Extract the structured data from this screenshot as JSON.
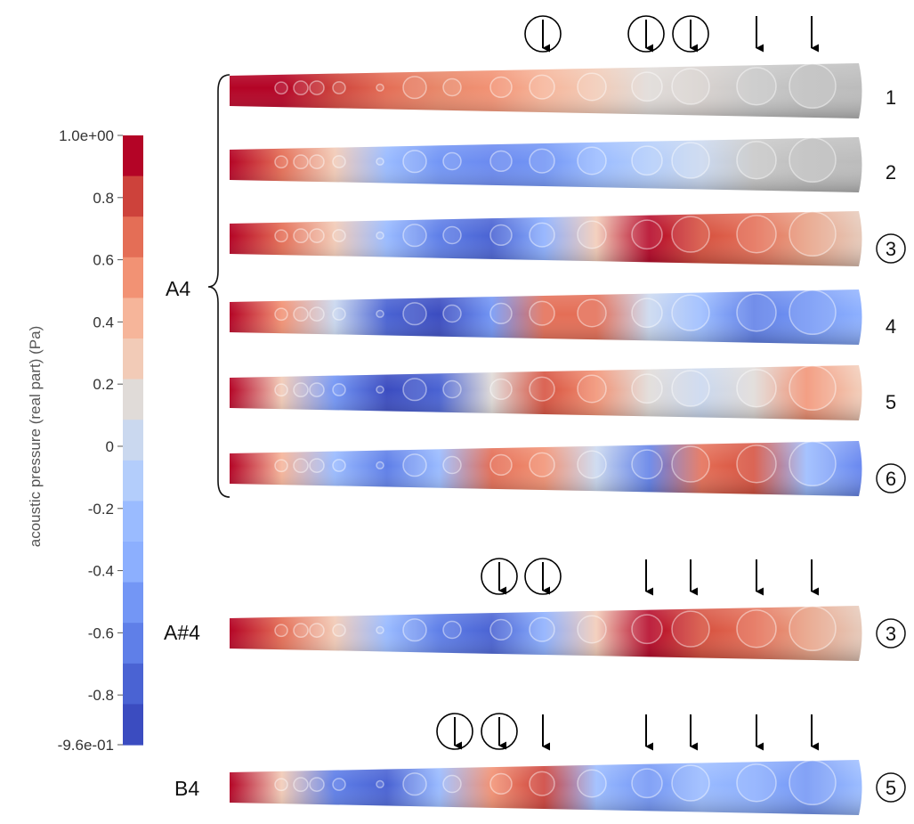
{
  "colorbar": {
    "title": "acoustic pressure (real part) (Pa)",
    "bands": [
      "#b40426",
      "#cd423b",
      "#e46e56",
      "#f29274",
      "#f6b59a",
      "#f2cbb7",
      "#e0dbd8",
      "#cad8ef",
      "#b3cdfb",
      "#9abbff",
      "#8caffe",
      "#7396f5",
      "#5f7fe8",
      "#4a63d3",
      "#3b4cc0"
    ],
    "ticks": [
      {
        "label": "1.0e+00",
        "value": 1.0
      },
      {
        "label": "0.8",
        "value": 0.8
      },
      {
        "label": "0.6",
        "value": 0.6
      },
      {
        "label": "0.4",
        "value": 0.4
      },
      {
        "label": "0.2",
        "value": 0.2
      },
      {
        "label": "0",
        "value": 0
      },
      {
        "label": "-0.2",
        "value": -0.2
      },
      {
        "label": "-0.4",
        "value": -0.4
      },
      {
        "label": "-0.6",
        "value": -0.6
      },
      {
        "label": "-0.8",
        "value": -0.8
      },
      {
        "label": "-9.6e-01",
        "value": -0.96
      }
    ]
  },
  "groups": [
    {
      "label": "A4",
      "notes": [
        "1",
        "2",
        "3",
        "4",
        "5",
        "6"
      ],
      "circled": [
        false,
        false,
        true,
        false,
        false,
        true
      ]
    },
    {
      "label": "A#4",
      "notes": [
        "3"
      ],
      "circled": [
        true
      ]
    },
    {
      "label": "B4",
      "notes": [
        "5"
      ],
      "circled": [
        true
      ]
    }
  ],
  "tube_colors": [
    [
      "#b40426",
      "#b40426",
      "#cd423b",
      "#e46e56",
      "#e8886a",
      "#f29274",
      "#f6b59a",
      "#f2cbb7",
      "#e0dbd8",
      "#d8d2cf",
      "#c8c8c8",
      "#bfbfbf",
      "#bcbcbc"
    ],
    [
      "#b40426",
      "#e46e56",
      "#f2cbb7",
      "#9abbff",
      "#7396f5",
      "#6b8af0",
      "#7396f5",
      "#9abbff",
      "#b3cdfb",
      "#cad8ef",
      "#c8c8c8",
      "#bfbfbf",
      "#bcbcbc"
    ],
    [
      "#b40426",
      "#e46e56",
      "#f2cbb7",
      "#9abbff",
      "#5f7fe8",
      "#4a63d3",
      "#8caffe",
      "#f2cbb7",
      "#b40426",
      "#d6503e",
      "#e46e56",
      "#e8a084",
      "#e6c8b8"
    ],
    [
      "#b40426",
      "#f29274",
      "#cad8ef",
      "#4a63d3",
      "#3b4cc0",
      "#7396f5",
      "#e46e56",
      "#e46e56",
      "#cad8ef",
      "#9abbff",
      "#5f7fe8",
      "#7396f5",
      "#8caffe"
    ],
    [
      "#b40426",
      "#f2cbb7",
      "#7396f5",
      "#3b4cc0",
      "#4a63d3",
      "#e0dbd8",
      "#d6503e",
      "#f29274",
      "#e0dbd8",
      "#cad8ef",
      "#e0dbd8",
      "#f29274",
      "#f2cbb7"
    ],
    [
      "#b40426",
      "#f6b59a",
      "#9abbff",
      "#5f7fe8",
      "#9abbff",
      "#e46e56",
      "#f29274",
      "#cad8ef",
      "#5f7fe8",
      "#e46e56",
      "#d6503e",
      "#9abbff",
      "#6b8af0"
    ],
    [
      "#b40426",
      "#e46e56",
      "#f2cbb7",
      "#9abbff",
      "#5f7fe8",
      "#4a63d3",
      "#8caffe",
      "#f2cbb7",
      "#b40426",
      "#d6503e",
      "#e46e56",
      "#e8a084",
      "#e6c8b8"
    ],
    [
      "#b40426",
      "#f2cbb7",
      "#5f7fe8",
      "#4a63d3",
      "#9abbff",
      "#f29274",
      "#cd423b",
      "#9abbff",
      "#7396f5",
      "#9abbff",
      "#8caffe",
      "#7396f5",
      "#9abbff"
    ]
  ]
}
